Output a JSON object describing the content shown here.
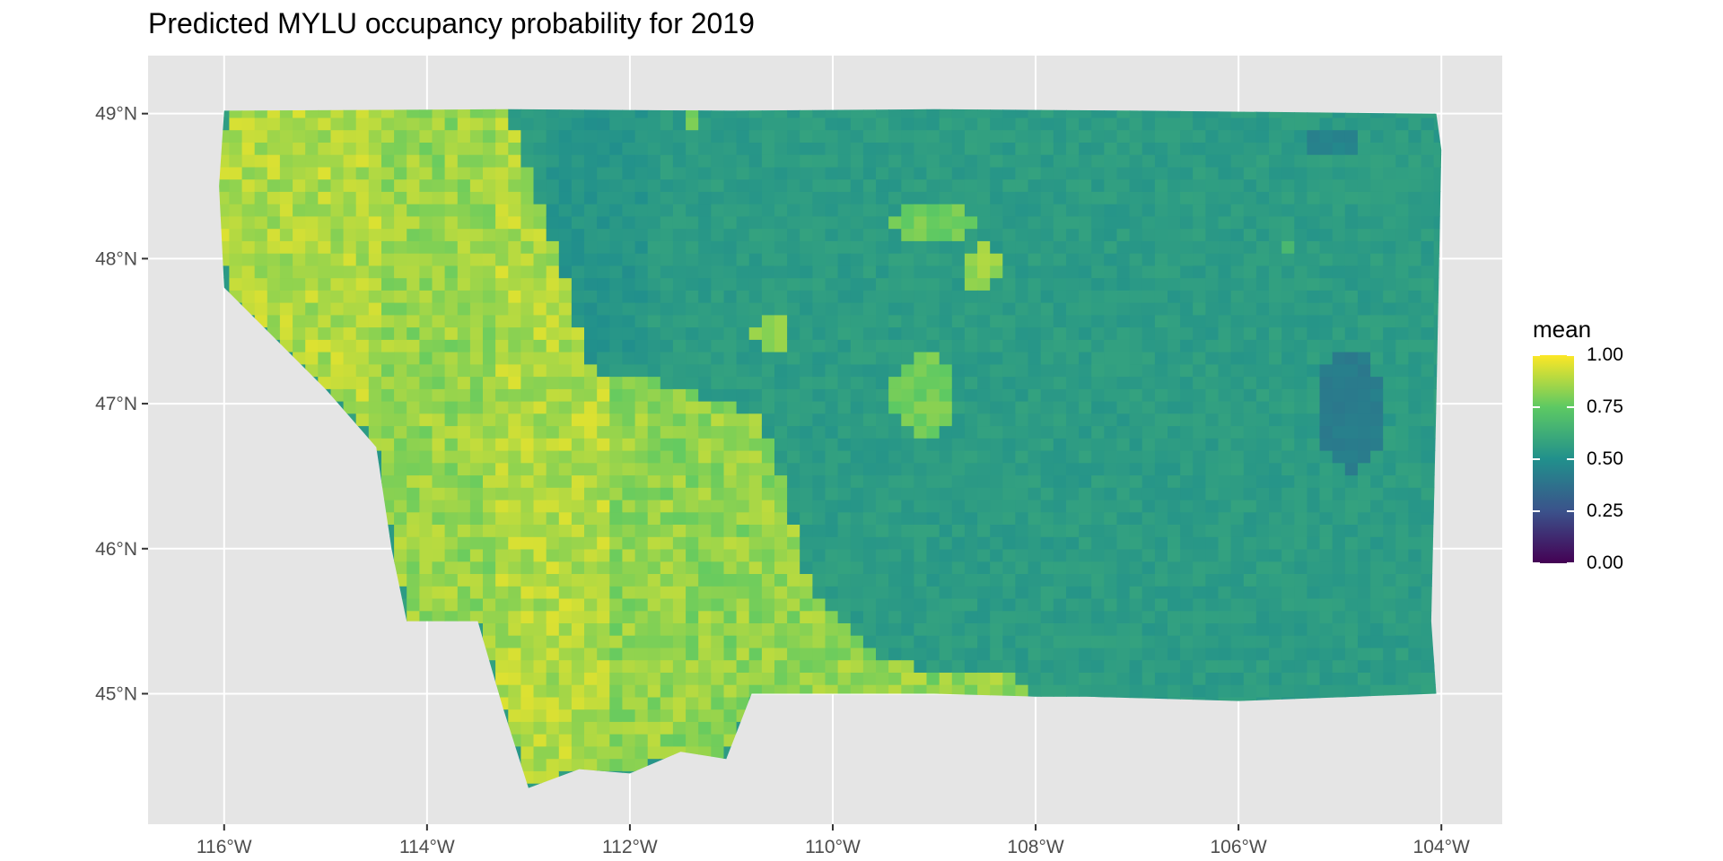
{
  "title": "Predicted MYLU occupancy probability for 2019",
  "map": {
    "region": "Montana",
    "projection": "latlon",
    "panel_background": "#e5e5e5",
    "grid_color": "#ffffff",
    "lon_range": [
      -116.75,
      -103.4
    ],
    "lat_range": [
      44.1,
      49.4
    ],
    "x_ticks": [
      {
        "value": -116,
        "label": "116°W"
      },
      {
        "value": -114,
        "label": "114°W"
      },
      {
        "value": -112,
        "label": "112°W"
      },
      {
        "value": -110,
        "label": "110°W"
      },
      {
        "value": -108,
        "label": "108°W"
      },
      {
        "value": -106,
        "label": "106°W"
      },
      {
        "value": -104,
        "label": "104°W"
      }
    ],
    "y_ticks": [
      {
        "value": 49,
        "label": "49°N"
      },
      {
        "value": 48,
        "label": "48°N"
      },
      {
        "value": 47,
        "label": "47°N"
      },
      {
        "value": 46,
        "label": "46°N"
      },
      {
        "value": 45,
        "label": "45°N"
      }
    ],
    "boundary": [
      [
        -116.0,
        49.02
      ],
      [
        -113.2,
        49.03
      ],
      [
        -111.0,
        49.02
      ],
      [
        -109.0,
        49.03
      ],
      [
        -107.0,
        49.02
      ],
      [
        -104.05,
        49.0
      ],
      [
        -104.0,
        48.75
      ],
      [
        -104.05,
        47.0
      ],
      [
        -104.1,
        45.5
      ],
      [
        -104.05,
        45.0
      ],
      [
        -106.0,
        44.95
      ],
      [
        -107.5,
        44.98
      ],
      [
        -108.0,
        44.98
      ],
      [
        -109.0,
        45.0
      ],
      [
        -110.8,
        45.0
      ],
      [
        -111.05,
        44.55
      ],
      [
        -111.5,
        44.6
      ],
      [
        -112.0,
        44.45
      ],
      [
        -112.5,
        44.48
      ],
      [
        -113.0,
        44.35
      ],
      [
        -113.25,
        44.9
      ],
      [
        -113.5,
        45.5
      ],
      [
        -114.2,
        45.5
      ],
      [
        -114.35,
        46.0
      ],
      [
        -114.5,
        46.7
      ],
      [
        -115.0,
        47.1
      ],
      [
        -115.5,
        47.45
      ],
      [
        -116.0,
        47.8
      ],
      [
        -116.05,
        48.5
      ]
    ],
    "color_regions": {
      "west_high": [
        [
          -116.0,
          49.02
        ],
        [
          -113.2,
          49.03
        ],
        [
          -112.95,
          48.5
        ],
        [
          -112.6,
          47.8
        ],
        [
          -112.4,
          47.25
        ],
        [
          -111.7,
          47.15
        ],
        [
          -110.7,
          46.9
        ],
        [
          -110.55,
          46.6
        ],
        [
          -110.35,
          46.05
        ],
        [
          -110.2,
          45.7
        ],
        [
          -109.8,
          45.4
        ],
        [
          -109.4,
          45.2
        ],
        [
          -108.3,
          45.15
        ],
        [
          -108.0,
          45.0
        ],
        [
          -110.8,
          45.0
        ],
        [
          -111.05,
          44.55
        ],
        [
          -111.5,
          44.6
        ],
        [
          -112.0,
          44.45
        ],
        [
          -112.5,
          44.48
        ],
        [
          -113.0,
          44.35
        ],
        [
          -113.25,
          44.9
        ],
        [
          -113.5,
          45.5
        ],
        [
          -114.2,
          45.5
        ],
        [
          -114.35,
          46.0
        ],
        [
          -114.5,
          46.7
        ],
        [
          -115.0,
          47.1
        ],
        [
          -115.5,
          47.45
        ],
        [
          -116.0,
          47.8
        ],
        [
          -116.05,
          48.5
        ]
      ],
      "patches": [
        {
          "center": [
            -109.0,
            48.25
          ],
          "rx": 0.4,
          "ry": 0.15,
          "value": 0.78
        },
        {
          "center": [
            -108.55,
            47.95
          ],
          "rx": 0.22,
          "ry": 0.14,
          "value": 0.85
        },
        {
          "center": [
            -110.6,
            47.5
          ],
          "rx": 0.2,
          "ry": 0.12,
          "value": 0.82
        },
        {
          "center": [
            -109.1,
            47.05
          ],
          "rx": 0.32,
          "ry": 0.28,
          "value": 0.78
        },
        {
          "center": [
            -111.4,
            49.0
          ],
          "rx": 0.08,
          "ry": 0.1,
          "value": 0.78
        },
        {
          "center": [
            -105.5,
            48.1
          ],
          "rx": 0.08,
          "ry": 0.05,
          "value": 0.7
        }
      ],
      "dark_spots": [
        {
          "center": [
            -104.9,
            46.95
          ],
          "rx": 0.35,
          "ry": 0.4,
          "value": 0.42
        },
        {
          "center": [
            -105.1,
            48.8
          ],
          "rx": 0.25,
          "ry": 0.12,
          "value": 0.45
        },
        {
          "center": [
            -111.8,
            47.0
          ],
          "rx": 0.1,
          "ry": 0.08,
          "value": 0.45
        },
        {
          "center": [
            -111.5,
            46.9
          ],
          "rx": 0.1,
          "ry": 0.08,
          "value": 0.55
        }
      ],
      "east_base_value": 0.55,
      "west_base_value": 0.88
    }
  },
  "legend": {
    "title": "mean",
    "colors": [
      "#440154",
      "#3b528b",
      "#21908c",
      "#5dc963",
      "#fde725"
    ],
    "ticks": [
      {
        "value": 1.0,
        "label": "1.00"
      },
      {
        "value": 0.75,
        "label": "0.75"
      },
      {
        "value": 0.5,
        "label": "0.50"
      },
      {
        "value": 0.25,
        "label": "0.25"
      },
      {
        "value": 0.0,
        "label": "0.00"
      }
    ]
  }
}
